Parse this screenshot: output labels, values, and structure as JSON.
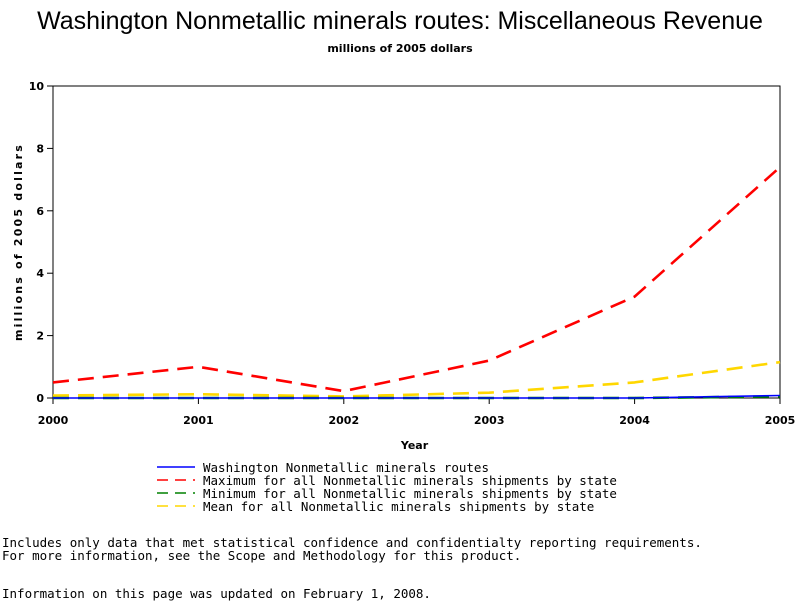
{
  "chart_data": {
    "type": "line",
    "title": "Washington Nonmetallic minerals routes: Miscellaneous Revenue",
    "subtitle": "millions of 2005 dollars",
    "xlabel": "Year",
    "ylabel": "millions of 2005 dollars",
    "x": [
      2000,
      2001,
      2002,
      2003,
      2004,
      2005
    ],
    "xlim": [
      2000,
      2005
    ],
    "ylim": [
      0,
      10
    ],
    "yticks": [
      0,
      2,
      4,
      6,
      8,
      10
    ],
    "grid": false,
    "legend_position": "bottom",
    "series": [
      {
        "name": "Washington Nonmetallic minerals routes",
        "color": "#0000ff",
        "style": "solid",
        "values": [
          0.0,
          0.0,
          0.0,
          0.0,
          0.0,
          0.08
        ]
      },
      {
        "name": "Maximum for all Nonmetallic minerals shipments by state",
        "color": "#ff0000",
        "style": "dashed",
        "values": [
          0.5,
          1.0,
          0.22,
          1.2,
          3.25,
          7.4
        ]
      },
      {
        "name": "Minimum for all Nonmetallic minerals shipments by state",
        "color": "#008000",
        "style": "dashed",
        "values": [
          0.0,
          0.0,
          0.0,
          0.0,
          0.0,
          0.05
        ]
      },
      {
        "name": "Mean for all Nonmetallic minerals shipments by state",
        "color": "#ffd700",
        "style": "dashed",
        "values": [
          0.08,
          0.12,
          0.05,
          0.17,
          0.5,
          1.15
        ]
      }
    ]
  },
  "footnotes": {
    "line1": "Includes only data that met statistical confidence and confidentialty reporting requirements.",
    "line2": "For more information, see the Scope and Methodology for this product.",
    "updated": "Information on this page was updated on February 1, 2008."
  }
}
